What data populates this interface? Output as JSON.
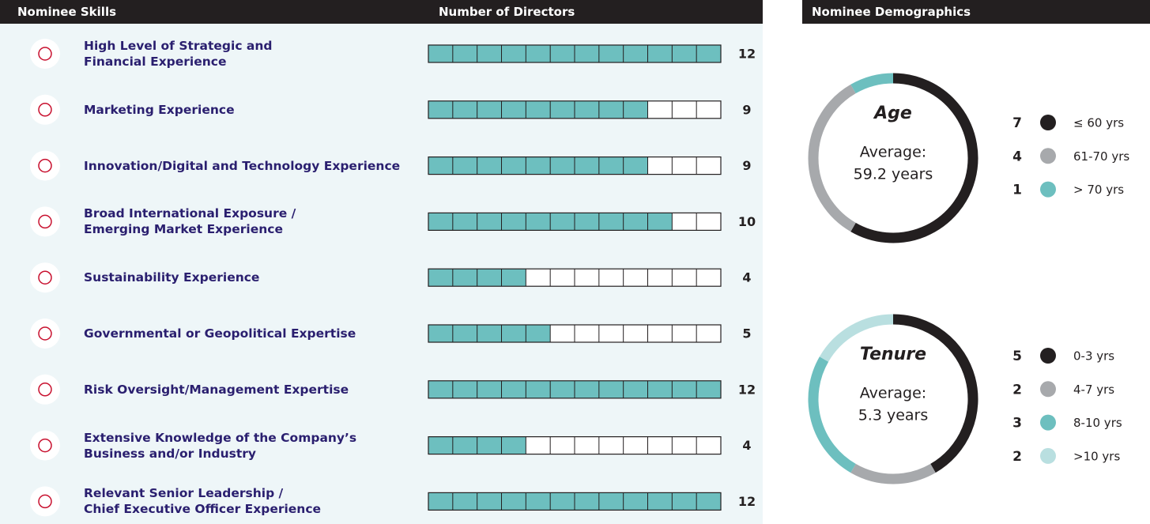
{
  "chart_data": [
    {
      "type": "blocks",
      "title": "Nominee Skills",
      "axis_label": "Number of Directors",
      "categories": [
        "High Level of Strategic and\nFinancial Experience",
        "Marketing Experience",
        "Innovation/Digital and Technology Experience",
        "Broad International Exposure /\nEmerging Market Experience",
        "Sustainability Experience",
        "Governmental or Geopolitical Expertise",
        "Risk Oversight/Management Expertise",
        "Extensive Knowledge of the Company’s\nBusiness and/or Industry",
        "Relevant Senior Leadership /\nChief Executive Officer Experience"
      ],
      "values": [
        12,
        9,
        9,
        10,
        4,
        5,
        12,
        4,
        12
      ],
      "xlim": [
        0,
        12
      ],
      "color": "#6dbfbf"
    },
    {
      "type": "donut",
      "heading": "Nominee Demographics",
      "title": "Age",
      "average_label": "Average:",
      "average": "59.2 years",
      "categories": [
        "≤ 60 yrs",
        "61-70 yrs",
        "> 70 yrs"
      ],
      "values": [
        7,
        4,
        1
      ],
      "colors": [
        "#231f20",
        "#a7a9ac",
        "#6dbfbf"
      ]
    },
    {
      "type": "donut",
      "title": "Tenure",
      "average_label": "Average:",
      "average": "5.3 years",
      "categories": [
        "0-3 yrs",
        "4-7 yrs",
        "8-10 yrs",
        ">10 yrs"
      ],
      "values": [
        5,
        2,
        3,
        2
      ],
      "colors": [
        "#231f20",
        "#a7a9ac",
        "#6dbfbf",
        "#b9dfe0"
      ]
    }
  ]
}
